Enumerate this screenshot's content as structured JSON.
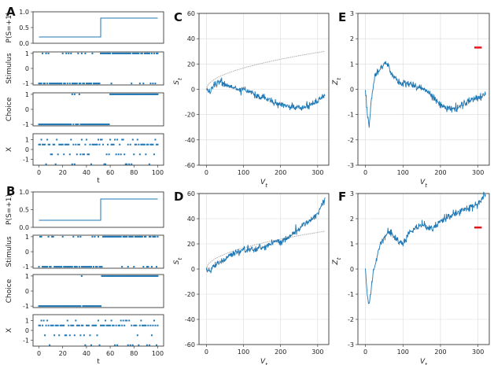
{
  "chart_data": [
    {
      "panel_letter": "A",
      "type": "line+scatter",
      "subplots": [
        {
          "ylabel": "P(S=+1)",
          "yticks": [
            "0.0",
            "0.5",
            "1.0"
          ],
          "ylim": [
            0,
            1
          ],
          "series": [
            {
              "x": [
                0,
                52,
                52,
                100
              ],
              "y": [
                0.2,
                0.2,
                0.8,
                0.8
              ]
            }
          ]
        },
        {
          "ylabel": "Stimulus",
          "yticks": [
            "-1",
            "0",
            "1"
          ],
          "ylim": [
            -1.1,
            1.1
          ],
          "density_plus_before": 0.2,
          "density_plus_after": 0.8,
          "seed": 11
        },
        {
          "ylabel": "Choice",
          "yticks": [
            "-1",
            "0",
            "1"
          ],
          "ylim": [
            -1.1,
            1.1
          ],
          "switch_t": 60,
          "seed": 12,
          "stray_plus": [
            28,
            30,
            34
          ]
        },
        {
          "ylabel": "X",
          "xlabel": "t",
          "yticks": [
            "-1",
            "0",
            "1"
          ],
          "ylim": [
            -1.6,
            1.6
          ],
          "xticks": [
            "0",
            "20",
            "40",
            "60",
            "80",
            "100"
          ],
          "seed": 13
        }
      ]
    },
    {
      "panel_letter": "B",
      "type": "line+scatter",
      "subplots": [
        {
          "ylabel": "P(S=+1)",
          "yticks": [
            "0.0",
            "0.5",
            "1.0"
          ],
          "ylim": [
            0,
            1
          ],
          "series": [
            {
              "x": [
                0,
                52,
                52,
                100
              ],
              "y": [
                0.2,
                0.2,
                0.8,
                0.8
              ]
            }
          ]
        },
        {
          "ylabel": "Stimulus",
          "yticks": [
            "-1",
            "0",
            "1"
          ],
          "ylim": [
            -1.1,
            1.1
          ],
          "density_plus_before": 0.2,
          "density_plus_after": 0.8,
          "seed": 21
        },
        {
          "ylabel": "Choice",
          "yticks": [
            "-1",
            "0",
            "1"
          ],
          "ylim": [
            -1.1,
            1.1
          ],
          "switch_t": 53,
          "seed": 22,
          "stray_plus": [
            36
          ]
        },
        {
          "ylabel": "X",
          "xlabel": "t",
          "yticks": [
            "-1",
            "0",
            "1"
          ],
          "ylim": [
            -1.6,
            1.6
          ],
          "xticks": [
            "0",
            "20",
            "40",
            "60",
            "80",
            "100"
          ],
          "seed": 23
        }
      ]
    },
    {
      "panel_letter": "C",
      "type": "line",
      "xlabel": "V_t",
      "ylabel": "S_t",
      "xlim": [
        -20,
        330
      ],
      "ylim": [
        -60,
        60
      ],
      "xticks": [
        0,
        100,
        200,
        300
      ],
      "yticks": [
        -60,
        -40,
        -20,
        0,
        20,
        40,
        60
      ],
      "grid": true,
      "series": [
        {
          "kind": "sqrt_bound",
          "scale": 1.68,
          "color": "#aaaaaa"
        },
        {
          "kind": "walk",
          "color": "#1f77b4",
          "anchors": [
            [
              0,
              0
            ],
            [
              10,
              -3
            ],
            [
              20,
              4
            ],
            [
              40,
              6
            ],
            [
              60,
              2
            ],
            [
              80,
              1
            ],
            [
              100,
              0
            ],
            [
              120,
              -3
            ],
            [
              140,
              -6
            ],
            [
              160,
              -7
            ],
            [
              180,
              -10
            ],
            [
              200,
              -12
            ],
            [
              220,
              -13
            ],
            [
              240,
              -14
            ],
            [
              260,
              -15
            ],
            [
              280,
              -12
            ],
            [
              300,
              -9
            ],
            [
              320,
              -5
            ]
          ]
        }
      ]
    },
    {
      "panel_letter": "D",
      "type": "line",
      "xlabel": "V_t",
      "ylabel": "S_t",
      "xlim": [
        -20,
        330
      ],
      "ylim": [
        -60,
        60
      ],
      "xticks": [
        0,
        100,
        200,
        300
      ],
      "yticks": [
        -60,
        -40,
        -20,
        0,
        20,
        40,
        60
      ],
      "grid": true,
      "series": [
        {
          "kind": "sqrt_bound",
          "scale": 1.68,
          "color": "#aaaaaa"
        },
        {
          "kind": "walk",
          "color": "#1f77b4",
          "anchors": [
            [
              0,
              0
            ],
            [
              10,
              -2
            ],
            [
              30,
              4
            ],
            [
              60,
              10
            ],
            [
              80,
              14
            ],
            [
              100,
              15
            ],
            [
              130,
              16
            ],
            [
              160,
              18
            ],
            [
              180,
              21
            ],
            [
              200,
              22
            ],
            [
              220,
              25
            ],
            [
              240,
              30
            ],
            [
              260,
              35
            ],
            [
              280,
              38
            ],
            [
              300,
              44
            ],
            [
              320,
              57
            ]
          ]
        }
      ]
    },
    {
      "panel_letter": "E",
      "type": "line",
      "xlabel": "V_t",
      "ylabel": "Z_t",
      "xlim": [
        -20,
        330
      ],
      "ylim": [
        -3,
        3
      ],
      "xticks": [
        0,
        100,
        200,
        300
      ],
      "yticks": [
        -3,
        -2,
        -1,
        0,
        1,
        2,
        3
      ],
      "grid": true,
      "threshold": {
        "x": [
          290,
          310
        ],
        "y": 1.65,
        "color": "#e8141b"
      },
      "series": [
        {
          "kind": "walk",
          "color": "#1f77b4",
          "anchors": [
            [
              0,
              0
            ],
            [
              5,
              -1
            ],
            [
              10,
              -1.5
            ],
            [
              15,
              -0.5
            ],
            [
              25,
              0.5
            ],
            [
              40,
              0.8
            ],
            [
              55,
              1.1
            ],
            [
              70,
              0.6
            ],
            [
              90,
              0.3
            ],
            [
              120,
              0.2
            ],
            [
              140,
              0.1
            ],
            [
              160,
              0
            ],
            [
              180,
              -0.3
            ],
            [
              200,
              -0.6
            ],
            [
              230,
              -0.8
            ],
            [
              260,
              -0.6
            ],
            [
              290,
              -0.4
            ],
            [
              320,
              -0.2
            ]
          ]
        }
      ]
    },
    {
      "panel_letter": "F",
      "type": "line",
      "xlabel": "V_t",
      "ylabel": "Z_t",
      "xlim": [
        -20,
        330
      ],
      "ylim": [
        -3,
        3
      ],
      "xticks": [
        0,
        100,
        200,
        300
      ],
      "yticks": [
        -3,
        -2,
        -1,
        0,
        1,
        2,
        3
      ],
      "grid": true,
      "threshold": {
        "x": [
          290,
          310
        ],
        "y": 1.65,
        "color": "#e8141b"
      },
      "series": [
        {
          "kind": "walk",
          "color": "#1f77b4",
          "anchors": [
            [
              0,
              0
            ],
            [
              5,
              -1
            ],
            [
              10,
              -1.5
            ],
            [
              20,
              -0.2
            ],
            [
              40,
              1
            ],
            [
              60,
              1.5
            ],
            [
              80,
              1.2
            ],
            [
              100,
              1.0
            ],
            [
              120,
              1.5
            ],
            [
              150,
              1.8
            ],
            [
              180,
              1.6
            ],
            [
              210,
              2.0
            ],
            [
              240,
              2.2
            ],
            [
              270,
              2.4
            ],
            [
              300,
              2.6
            ],
            [
              320,
              3
            ]
          ]
        }
      ]
    }
  ]
}
